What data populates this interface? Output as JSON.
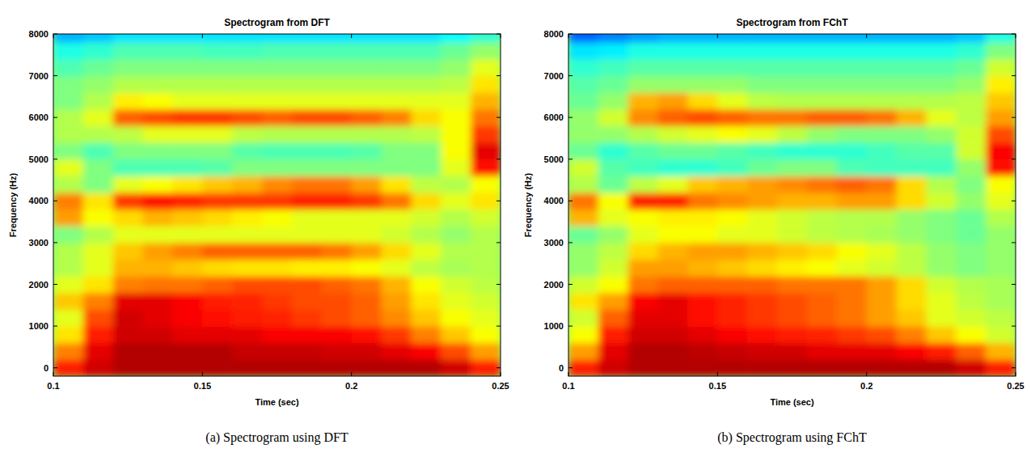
{
  "chart_data": [
    {
      "type": "heatmap",
      "title": "Spectrogram from DFT",
      "caption": "(a) Spectrogram using DFT",
      "x_label": "Time (sec)",
      "y_label": "Frequency (Hz)",
      "color": "jet",
      "xlim": [
        0.1,
        0.25
      ],
      "ylim": [
        -200,
        8000
      ],
      "xticks": [
        0.1,
        0.15,
        0.2,
        0.25
      ],
      "yticks": [
        0,
        1000,
        2000,
        3000,
        4000,
        5000,
        6000,
        7000,
        8000
      ],
      "zlim": [
        0,
        1
      ],
      "x": [
        0.105,
        0.115,
        0.125,
        0.135,
        0.145,
        0.155,
        0.165,
        0.175,
        0.185,
        0.195,
        0.205,
        0.215,
        0.225,
        0.235,
        0.245
      ],
      "y": [
        0,
        400,
        800,
        1200,
        1600,
        2000,
        2400,
        2800,
        3200,
        3600,
        4000,
        4400,
        4800,
        5200,
        5600,
        6000,
        6400,
        6800,
        7200,
        7600,
        8000
      ],
      "cells": [
        [
          0.85,
          0.92,
          0.95,
          0.95,
          0.95,
          0.95,
          0.95,
          0.95,
          0.95,
          0.95,
          0.95,
          0.95,
          0.95,
          0.92,
          0.85
        ],
        [
          0.75,
          0.9,
          0.95,
          0.95,
          0.95,
          0.95,
          0.93,
          0.93,
          0.93,
          0.92,
          0.92,
          0.9,
          0.88,
          0.8,
          0.72
        ],
        [
          0.65,
          0.85,
          0.92,
          0.92,
          0.9,
          0.9,
          0.9,
          0.88,
          0.88,
          0.88,
          0.86,
          0.82,
          0.75,
          0.68,
          0.62
        ],
        [
          0.6,
          0.8,
          0.92,
          0.9,
          0.88,
          0.86,
          0.85,
          0.84,
          0.82,
          0.8,
          0.78,
          0.74,
          0.68,
          0.62,
          0.6
        ],
        [
          0.68,
          0.75,
          0.9,
          0.9,
          0.88,
          0.85,
          0.84,
          0.82,
          0.8,
          0.8,
          0.78,
          0.72,
          0.65,
          0.6,
          0.58
        ],
        [
          0.6,
          0.65,
          0.75,
          0.76,
          0.76,
          0.78,
          0.8,
          0.8,
          0.8,
          0.78,
          0.76,
          0.7,
          0.62,
          0.58,
          0.56
        ],
        [
          0.55,
          0.6,
          0.7,
          0.7,
          0.68,
          0.66,
          0.65,
          0.65,
          0.64,
          0.64,
          0.62,
          0.6,
          0.56,
          0.54,
          0.55
        ],
        [
          0.55,
          0.6,
          0.68,
          0.72,
          0.75,
          0.78,
          0.78,
          0.78,
          0.78,
          0.76,
          0.72,
          0.66,
          0.6,
          0.55,
          0.55
        ],
        [
          0.5,
          0.55,
          0.6,
          0.6,
          0.6,
          0.6,
          0.6,
          0.6,
          0.6,
          0.6,
          0.6,
          0.58,
          0.55,
          0.52,
          0.55
        ],
        [
          0.72,
          0.62,
          0.66,
          0.7,
          0.68,
          0.66,
          0.64,
          0.62,
          0.6,
          0.6,
          0.6,
          0.6,
          0.58,
          0.55,
          0.58
        ],
        [
          0.75,
          0.65,
          0.82,
          0.86,
          0.84,
          0.82,
          0.82,
          0.82,
          0.84,
          0.84,
          0.82,
          0.76,
          0.66,
          0.6,
          0.65
        ],
        [
          0.55,
          0.5,
          0.6,
          0.62,
          0.65,
          0.68,
          0.7,
          0.74,
          0.76,
          0.76,
          0.72,
          0.65,
          0.56,
          0.55,
          0.62
        ],
        [
          0.6,
          0.5,
          0.45,
          0.45,
          0.45,
          0.46,
          0.5,
          0.5,
          0.5,
          0.5,
          0.5,
          0.5,
          0.5,
          0.6,
          0.86
        ],
        [
          0.5,
          0.45,
          0.5,
          0.5,
          0.5,
          0.5,
          0.46,
          0.45,
          0.45,
          0.45,
          0.46,
          0.5,
          0.5,
          0.62,
          0.9
        ],
        [
          0.55,
          0.55,
          0.56,
          0.6,
          0.6,
          0.6,
          0.56,
          0.55,
          0.55,
          0.55,
          0.55,
          0.55,
          0.56,
          0.62,
          0.82
        ],
        [
          0.55,
          0.6,
          0.78,
          0.8,
          0.82,
          0.82,
          0.8,
          0.78,
          0.8,
          0.8,
          0.78,
          0.75,
          0.66,
          0.62,
          0.76
        ],
        [
          0.5,
          0.55,
          0.64,
          0.62,
          0.6,
          0.6,
          0.6,
          0.6,
          0.6,
          0.6,
          0.6,
          0.6,
          0.6,
          0.6,
          0.7
        ],
        [
          0.5,
          0.52,
          0.55,
          0.55,
          0.55,
          0.55,
          0.55,
          0.55,
          0.55,
          0.55,
          0.55,
          0.55,
          0.55,
          0.56,
          0.65
        ],
        [
          0.45,
          0.48,
          0.5,
          0.5,
          0.5,
          0.5,
          0.5,
          0.5,
          0.5,
          0.5,
          0.5,
          0.5,
          0.5,
          0.52,
          0.6
        ],
        [
          0.4,
          0.42,
          0.45,
          0.45,
          0.45,
          0.44,
          0.44,
          0.45,
          0.45,
          0.45,
          0.45,
          0.45,
          0.45,
          0.48,
          0.52
        ],
        [
          0.3,
          0.32,
          0.35,
          0.35,
          0.35,
          0.35,
          0.35,
          0.35,
          0.35,
          0.35,
          0.35,
          0.35,
          0.35,
          0.38,
          0.42
        ]
      ]
    },
    {
      "type": "heatmap",
      "title": "Spectrogram from FChT",
      "caption": "(b) Spectrogram using FChT",
      "x_label": "Time (sec)",
      "y_label": "Frequency (Hz)",
      "color": "jet",
      "xlim": [
        0.1,
        0.25
      ],
      "ylim": [
        -200,
        8000
      ],
      "xticks": [
        0.1,
        0.15,
        0.2,
        0.25
      ],
      "yticks": [
        0,
        1000,
        2000,
        3000,
        4000,
        5000,
        6000,
        7000,
        8000
      ],
      "zlim": [
        0,
        1
      ],
      "x": [
        0.105,
        0.115,
        0.125,
        0.135,
        0.145,
        0.155,
        0.165,
        0.175,
        0.185,
        0.195,
        0.205,
        0.215,
        0.225,
        0.235,
        0.245
      ],
      "y": [
        0,
        400,
        800,
        1200,
        1600,
        2000,
        2400,
        2800,
        3200,
        3600,
        4000,
        4400,
        4800,
        5200,
        5600,
        6000,
        6400,
        6800,
        7200,
        7600,
        8000
      ],
      "cells": [
        [
          0.85,
          0.92,
          0.95,
          0.95,
          0.95,
          0.95,
          0.95,
          0.95,
          0.95,
          0.95,
          0.95,
          0.95,
          0.95,
          0.92,
          0.85
        ],
        [
          0.72,
          0.9,
          0.95,
          0.95,
          0.94,
          0.93,
          0.92,
          0.92,
          0.9,
          0.9,
          0.9,
          0.88,
          0.85,
          0.78,
          0.7
        ],
        [
          0.62,
          0.85,
          0.92,
          0.92,
          0.9,
          0.88,
          0.86,
          0.85,
          0.84,
          0.82,
          0.8,
          0.75,
          0.68,
          0.62,
          0.58
        ],
        [
          0.58,
          0.78,
          0.9,
          0.9,
          0.86,
          0.84,
          0.82,
          0.8,
          0.78,
          0.76,
          0.72,
          0.68,
          0.6,
          0.58,
          0.56
        ],
        [
          0.65,
          0.72,
          0.88,
          0.9,
          0.86,
          0.84,
          0.82,
          0.8,
          0.78,
          0.76,
          0.72,
          0.66,
          0.6,
          0.56,
          0.54
        ],
        [
          0.58,
          0.62,
          0.76,
          0.78,
          0.78,
          0.78,
          0.78,
          0.76,
          0.76,
          0.76,
          0.72,
          0.66,
          0.58,
          0.55,
          0.54
        ],
        [
          0.52,
          0.58,
          0.72,
          0.72,
          0.7,
          0.68,
          0.66,
          0.64,
          0.62,
          0.6,
          0.58,
          0.56,
          0.52,
          0.5,
          0.52
        ],
        [
          0.52,
          0.56,
          0.66,
          0.7,
          0.72,
          0.72,
          0.7,
          0.68,
          0.66,
          0.62,
          0.6,
          0.56,
          0.52,
          0.5,
          0.52
        ],
        [
          0.48,
          0.52,
          0.6,
          0.62,
          0.62,
          0.6,
          0.6,
          0.58,
          0.56,
          0.55,
          0.54,
          0.52,
          0.5,
          0.48,
          0.52
        ],
        [
          0.7,
          0.6,
          0.62,
          0.64,
          0.64,
          0.62,
          0.6,
          0.58,
          0.56,
          0.55,
          0.55,
          0.52,
          0.5,
          0.48,
          0.55
        ],
        [
          0.76,
          0.62,
          0.84,
          0.84,
          0.76,
          0.74,
          0.72,
          0.7,
          0.7,
          0.72,
          0.72,
          0.66,
          0.58,
          0.52,
          0.6
        ],
        [
          0.55,
          0.48,
          0.56,
          0.6,
          0.68,
          0.7,
          0.72,
          0.74,
          0.76,
          0.78,
          0.76,
          0.66,
          0.55,
          0.5,
          0.62
        ],
        [
          0.58,
          0.46,
          0.44,
          0.42,
          0.42,
          0.44,
          0.48,
          0.5,
          0.5,
          0.45,
          0.44,
          0.44,
          0.44,
          0.52,
          0.86
        ],
        [
          0.48,
          0.42,
          0.46,
          0.48,
          0.48,
          0.46,
          0.44,
          0.42,
          0.42,
          0.42,
          0.44,
          0.46,
          0.46,
          0.58,
          0.88
        ],
        [
          0.52,
          0.52,
          0.55,
          0.58,
          0.6,
          0.62,
          0.6,
          0.56,
          0.52,
          0.5,
          0.5,
          0.5,
          0.52,
          0.58,
          0.8
        ],
        [
          0.52,
          0.58,
          0.74,
          0.78,
          0.8,
          0.78,
          0.76,
          0.76,
          0.78,
          0.78,
          0.76,
          0.7,
          0.6,
          0.56,
          0.72
        ],
        [
          0.48,
          0.52,
          0.7,
          0.72,
          0.66,
          0.6,
          0.56,
          0.55,
          0.55,
          0.55,
          0.55,
          0.55,
          0.55,
          0.56,
          0.68
        ],
        [
          0.46,
          0.48,
          0.52,
          0.52,
          0.52,
          0.52,
          0.5,
          0.5,
          0.5,
          0.5,
          0.5,
          0.5,
          0.5,
          0.52,
          0.64
        ],
        [
          0.42,
          0.44,
          0.46,
          0.46,
          0.46,
          0.46,
          0.46,
          0.46,
          0.46,
          0.46,
          0.46,
          0.46,
          0.46,
          0.48,
          0.58
        ],
        [
          0.35,
          0.36,
          0.4,
          0.4,
          0.4,
          0.4,
          0.4,
          0.4,
          0.4,
          0.4,
          0.4,
          0.4,
          0.4,
          0.42,
          0.5
        ],
        [
          0.22,
          0.25,
          0.28,
          0.3,
          0.3,
          0.3,
          0.3,
          0.3,
          0.3,
          0.3,
          0.3,
          0.3,
          0.3,
          0.32,
          0.4
        ]
      ]
    }
  ]
}
